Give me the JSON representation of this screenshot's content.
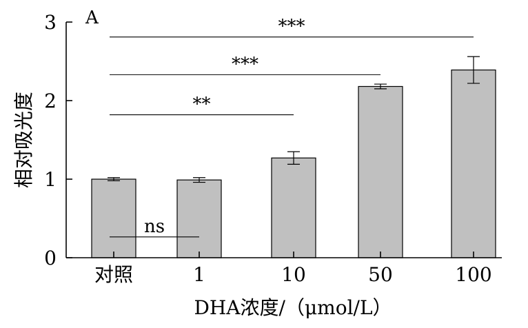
{
  "chart_data": {
    "type": "bar",
    "panel_label": "A",
    "categories": [
      "对照",
      "1",
      "10",
      "50",
      "100"
    ],
    "values": [
      1.0,
      0.99,
      1.27,
      2.18,
      2.39
    ],
    "errors": [
      0.02,
      0.03,
      0.08,
      0.03,
      0.17
    ],
    "xlabel": "DHA浓度/（μmol/L）",
    "ylabel": "相对吸光度",
    "ylim": [
      0,
      3
    ],
    "yticks": [
      "0",
      "1",
      "2",
      "3"
    ],
    "bar_color": "#c0c0c0",
    "grid": false,
    "significance": [
      {
        "from": 0,
        "to": 1,
        "label": "ns",
        "level": 0.265
      },
      {
        "from": 0,
        "to": 2,
        "label": "**",
        "level": 1.82
      },
      {
        "from": 0,
        "to": 3,
        "label": "***",
        "level": 2.33
      },
      {
        "from": 0,
        "to": 4,
        "label": "***",
        "level": 2.81
      }
    ]
  }
}
